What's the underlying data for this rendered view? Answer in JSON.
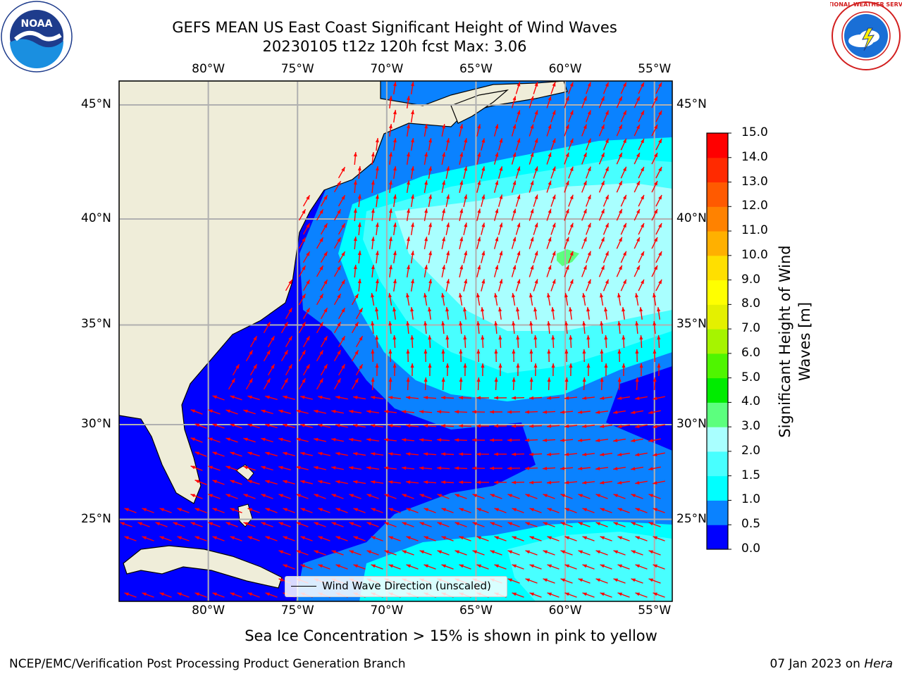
{
  "title": {
    "line1": "GEFS MEAN US East Coast Significant Height of Wind Waves",
    "line2": "20230105 t12z 120h fcst   Max: 3.06"
  },
  "logos": {
    "left": "noaa-logo",
    "left_text": "NOAA",
    "right": "national-weather-service-logo",
    "right_text": "NATIONAL WEATHER SERVICE"
  },
  "map": {
    "lon_labels": [
      "80°W",
      "75°W",
      "70°W",
      "65°W",
      "60°W",
      "55°W"
    ],
    "lat_labels": [
      "45°N",
      "40°N",
      "35°N",
      "30°N",
      "25°N"
    ],
    "lon_range": [
      -85,
      -54
    ],
    "lat_range": [
      20.5,
      46
    ],
    "legend_label": "Wind Wave Direction (unscaled)",
    "arrow_color": "#ff0000",
    "land_color": "#efedd9",
    "grid": true
  },
  "colorbar": {
    "title_line1": "Significant Height of Wind",
    "title_line2": "Waves [m]",
    "ticks": [
      "0.0",
      "0.5",
      "1.0",
      "1.5",
      "2.0",
      "3.0",
      "4.0",
      "5.0",
      "6.0",
      "7.0",
      "8.0",
      "9.0",
      "10.0",
      "11.0",
      "12.0",
      "13.0",
      "14.0",
      "15.0"
    ],
    "colors": [
      "#0000ff",
      "#0a82ff",
      "#00ffff",
      "#48ffff",
      "#a9ffff",
      "#5cff7e",
      "#00ec00",
      "#4ff500",
      "#a6f400",
      "#e4f000",
      "#ffff00",
      "#ffdf00",
      "#ffb000",
      "#ff8200",
      "#ff5a00",
      "#ff2a00",
      "#ff0000"
    ]
  },
  "subtitle": "Sea Ice Concentration > 15% is shown in pink to yellow",
  "footer": {
    "left": "NCEP/EMC/Verification Post Processing Product Generation Branch",
    "right_date": "07 Jan 2023 on ",
    "right_host": "Hera"
  }
}
